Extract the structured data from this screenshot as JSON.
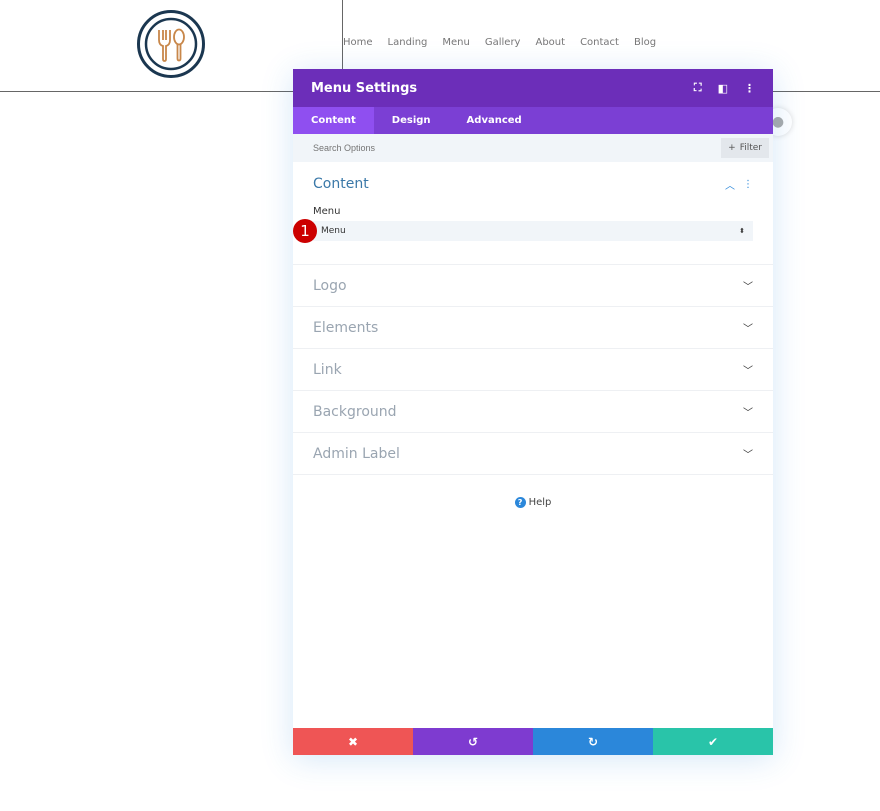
{
  "nav": [
    "Home",
    "Landing",
    "Menu",
    "Gallery",
    "About",
    "Contact",
    "Blog"
  ],
  "modal": {
    "title": "Menu Settings",
    "header_icons": [
      "fullscreen-icon",
      "split-view-icon",
      "more-icon"
    ],
    "tabs": [
      "Content",
      "Design",
      "Advanced"
    ],
    "active_tab": "Content",
    "search_placeholder": "Search Options",
    "filter_label": "Filter",
    "open_section": {
      "title": "Content",
      "field_label": "Menu",
      "field_value": "Menu",
      "badge": "1"
    },
    "sections": [
      "Logo",
      "Elements",
      "Link",
      "Background",
      "Admin Label"
    ],
    "help": "Help",
    "footer": {
      "cancel": "✖",
      "undo": "↺",
      "redo": "↻",
      "save": "✔"
    }
  },
  "colors": {
    "header": "#6c2eb9",
    "tabs": "#7b3fd4",
    "cancel": "#ef5555",
    "undo": "#7e3bd0",
    "redo": "#2b87da",
    "save": "#29c4a9"
  }
}
